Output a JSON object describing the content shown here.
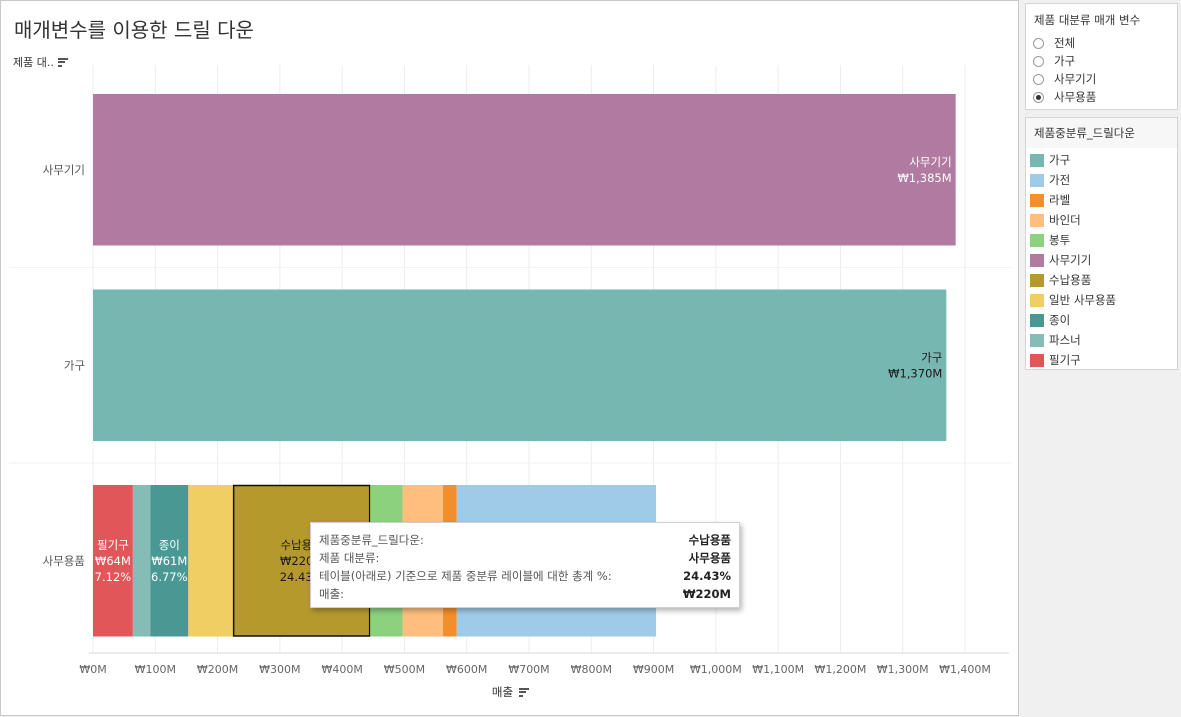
{
  "title": "매개변수를 이용한 드릴 다운",
  "row_header": "제품 대..",
  "chart_data": {
    "type": "bar",
    "orientation": "horizontal",
    "stacked": true,
    "xlabel": "매출",
    "xlim": [
      0,
      1400
    ],
    "x_unit": "M",
    "x_ticks": [
      "₩0M",
      "₩100M",
      "₩200M",
      "₩300M",
      "₩400M",
      "₩500M",
      "₩600M",
      "₩700M",
      "₩800M",
      "₩900M",
      "₩1,000M",
      "₩1,100M",
      "₩1,200M",
      "₩1,300M",
      "₩1,400M"
    ],
    "categories": [
      "사무기기",
      "가구",
      "사무용품"
    ],
    "bars": [
      {
        "category": "사무기기",
        "segments": [
          {
            "name": "사무기기",
            "value": 1385,
            "color": "#b07aa1",
            "label": [
              "사무기기",
              "₩1,385M"
            ]
          }
        ]
      },
      {
        "category": "가구",
        "segments": [
          {
            "name": "가구",
            "value": 1370,
            "color": "#76b7b2",
            "label": [
              "가구",
              "₩1,370M"
            ]
          }
        ]
      },
      {
        "category": "사무용품",
        "segments": [
          {
            "name": "필기구",
            "value": 64,
            "color": "#e15759",
            "label": [
              "필기구",
              "₩64M",
              "7.12%"
            ]
          },
          {
            "name": "파스너",
            "value": 28,
            "color": "#86bcb6"
          },
          {
            "name": "종이",
            "value": 61,
            "color": "#499894",
            "label": [
              "종이",
              "₩61M",
              "6.77%"
            ]
          },
          {
            "name": "일반 사무용품",
            "value": 72,
            "color": "#f1ce63"
          },
          {
            "name": "수납용품",
            "value": 220,
            "color": "#b6992d",
            "selected": true,
            "label": [
              "수납용품",
              "₩220M",
              "24.43%"
            ]
          },
          {
            "name": "봉투",
            "value": 52,
            "color": "#8cd17d"
          },
          {
            "name": "바인더",
            "value": 65,
            "color": "#ffbe7d"
          },
          {
            "name": "라벨",
            "value": 22,
            "color": "#f28e2b"
          },
          {
            "name": "가전",
            "value": 320,
            "color": "#a0cbe8"
          }
        ]
      }
    ]
  },
  "parameter": {
    "title": "제품 대분류 매개 변수",
    "options": [
      "전체",
      "가구",
      "사무기기",
      "사무용품"
    ],
    "selected": "사무용품"
  },
  "legend": {
    "title": "제품중분류_드릴다운",
    "items": [
      {
        "label": "가구",
        "color": "#76b7b2"
      },
      {
        "label": "가전",
        "color": "#a0cbe8"
      },
      {
        "label": "라벨",
        "color": "#f28e2b"
      },
      {
        "label": "바인더",
        "color": "#ffbe7d"
      },
      {
        "label": "봉투",
        "color": "#8cd17d"
      },
      {
        "label": "사무기기",
        "color": "#b07aa1"
      },
      {
        "label": "수납용품",
        "color": "#b6992d"
      },
      {
        "label": "일반 사무용품",
        "color": "#f1ce63"
      },
      {
        "label": "종이",
        "color": "#499894"
      },
      {
        "label": "파스너",
        "color": "#86bcb6"
      },
      {
        "label": "필기구",
        "color": "#e15759"
      }
    ]
  },
  "tooltip": {
    "rows": [
      {
        "key": "제품중분류_드릴다운:",
        "value": "수납용품"
      },
      {
        "key": "제품 대분류:",
        "value": "사무용품"
      },
      {
        "key": "테이블(아래로) 기준으로 제품 중분류 레이블에 대한 총계 %:",
        "value": "24.43%"
      },
      {
        "key": "매출:",
        "value": "₩220M"
      }
    ]
  }
}
